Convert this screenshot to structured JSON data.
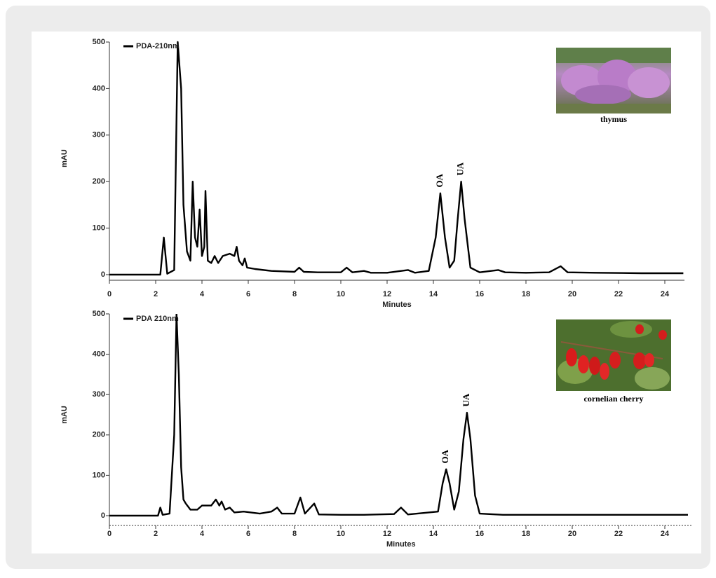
{
  "chart_data": [
    {
      "type": "line",
      "xlabel": "Minutes",
      "ylabel": "mAU",
      "image_caption": "thymus",
      "annotations": [
        "OA",
        "UA"
      ],
      "xlim": [
        0,
        24.85
      ],
      "ylim": [
        0,
        500
      ],
      "xticks": [
        0,
        2,
        4,
        6,
        8,
        10,
        12,
        14,
        16,
        18,
        20,
        22,
        24
      ],
      "yticks": [
        0,
        100,
        200,
        300,
        400,
        500
      ],
      "x": [
        0,
        2.2,
        2.35,
        2.5,
        2.8,
        2.95,
        3.1,
        3.2,
        3.35,
        3.5,
        3.6,
        3.7,
        3.8,
        3.9,
        4.0,
        4.1,
        4.15,
        4.25,
        4.4,
        4.55,
        4.7,
        4.9,
        5.2,
        5.4,
        5.5,
        5.6,
        5.75,
        5.85,
        5.95,
        6.3,
        7,
        8,
        8.2,
        8.4,
        9,
        10,
        10.25,
        10.5,
        11,
        11.3,
        12,
        12.9,
        13.2,
        13.8,
        14.1,
        14.3,
        14.5,
        14.7,
        14.9,
        15.05,
        15.2,
        15.35,
        15.6,
        16,
        16.8,
        17.1,
        18,
        19,
        19.5,
        19.8,
        21,
        23,
        24.8
      ],
      "series": [
        {
          "name": "PDA-210nm",
          "color": "#000000",
          "values": [
            0,
            0,
            80,
            2,
            10,
            500,
            400,
            150,
            50,
            30,
            200,
            80,
            60,
            140,
            40,
            60,
            180,
            30,
            25,
            40,
            25,
            40,
            45,
            40,
            60,
            30,
            20,
            35,
            15,
            12,
            8,
            6,
            15,
            6,
            5,
            5,
            15,
            5,
            8,
            4,
            4,
            10,
            4,
            8,
            80,
            175,
            80,
            15,
            30,
            120,
            200,
            120,
            15,
            5,
            10,
            5,
            4,
            5,
            18,
            5,
            4,
            3,
            3
          ]
        }
      ]
    },
    {
      "type": "line",
      "xlabel": "Minutes",
      "ylabel": "mAU",
      "image_caption": "cornelian cherry",
      "annotations": [
        "OA",
        "UA"
      ],
      "xlim": [
        0,
        25.2
      ],
      "ylim": [
        0,
        500
      ],
      "xticks": [
        0,
        2,
        4,
        6,
        8,
        10,
        12,
        14,
        16,
        18,
        20,
        22,
        24
      ],
      "yticks": [
        0,
        100,
        200,
        300,
        400,
        500
      ],
      "x": [
        0,
        2.1,
        2.2,
        2.3,
        2.6,
        2.8,
        2.9,
        3.0,
        3.1,
        3.2,
        3.3,
        3.5,
        3.8,
        4.0,
        4.4,
        4.6,
        4.75,
        4.85,
        5.0,
        5.2,
        5.4,
        5.8,
        6.5,
        7.0,
        7.25,
        7.45,
        8.0,
        8.25,
        8.45,
        8.85,
        9.05,
        10,
        11,
        12.3,
        12.6,
        12.9,
        14.2,
        14.4,
        14.55,
        14.7,
        14.9,
        15.1,
        15.3,
        15.45,
        15.6,
        15.8,
        16,
        17,
        25
      ],
      "series": [
        {
          "name": "PDA 210nm",
          "color": "#000000",
          "values": [
            0,
            0,
            20,
            2,
            5,
            200,
            500,
            350,
            120,
            40,
            30,
            15,
            15,
            25,
            25,
            40,
            25,
            35,
            15,
            20,
            8,
            10,
            5,
            10,
            20,
            5,
            5,
            45,
            5,
            30,
            3,
            2,
            2,
            4,
            20,
            3,
            10,
            80,
            115,
            80,
            15,
            60,
            190,
            255,
            190,
            50,
            5,
            2,
            2
          ]
        }
      ]
    }
  ]
}
